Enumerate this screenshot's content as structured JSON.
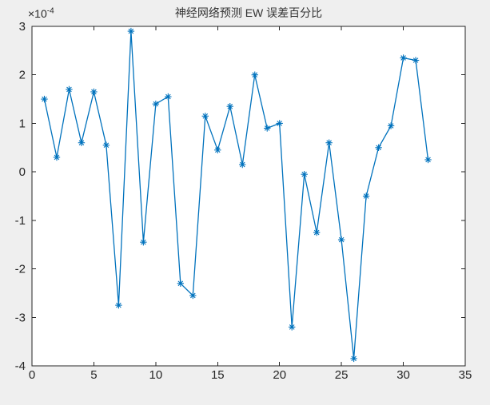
{
  "figure": {
    "background_color": "#efefef",
    "axes_background": "#ffffff",
    "axis_color": "#262626",
    "tick_label_color": "#262626",
    "line_color": "#0072BD"
  },
  "chart_data": {
    "type": "line",
    "title": "神经网络预测 EW 误差百分比",
    "marker": "asterisk",
    "line_color": "#0072BD",
    "x": [
      1,
      2,
      3,
      4,
      5,
      6,
      7,
      8,
      9,
      10,
      11,
      12,
      13,
      14,
      15,
      16,
      17,
      18,
      19,
      20,
      21,
      22,
      23,
      24,
      25,
      26,
      27,
      28,
      29,
      30,
      31,
      32
    ],
    "y": [
      1.5,
      0.3,
      1.7,
      0.6,
      1.65,
      0.55,
      -2.75,
      2.9,
      -1.45,
      1.4,
      1.55,
      -2.3,
      -2.55,
      1.15,
      0.45,
      1.35,
      0.15,
      2.0,
      0.9,
      1.0,
      -3.2,
      -0.05,
      -1.25,
      0.6,
      -1.4,
      -3.85,
      -0.5,
      0.5,
      0.95,
      2.35,
      2.3,
      0.25
    ],
    "y_scale": 0.0001,
    "y_scale_label_base": "×10",
    "y_scale_label_exp": "-4",
    "xlim": [
      0,
      35
    ],
    "ylim": [
      -4,
      3
    ],
    "xticks": [
      0,
      5,
      10,
      15,
      20,
      25,
      30,
      35
    ],
    "yticks": [
      -4,
      -3,
      -2,
      -1,
      0,
      1,
      2,
      3
    ],
    "grid": false,
    "legend": null,
    "xlabel": "",
    "ylabel": ""
  }
}
